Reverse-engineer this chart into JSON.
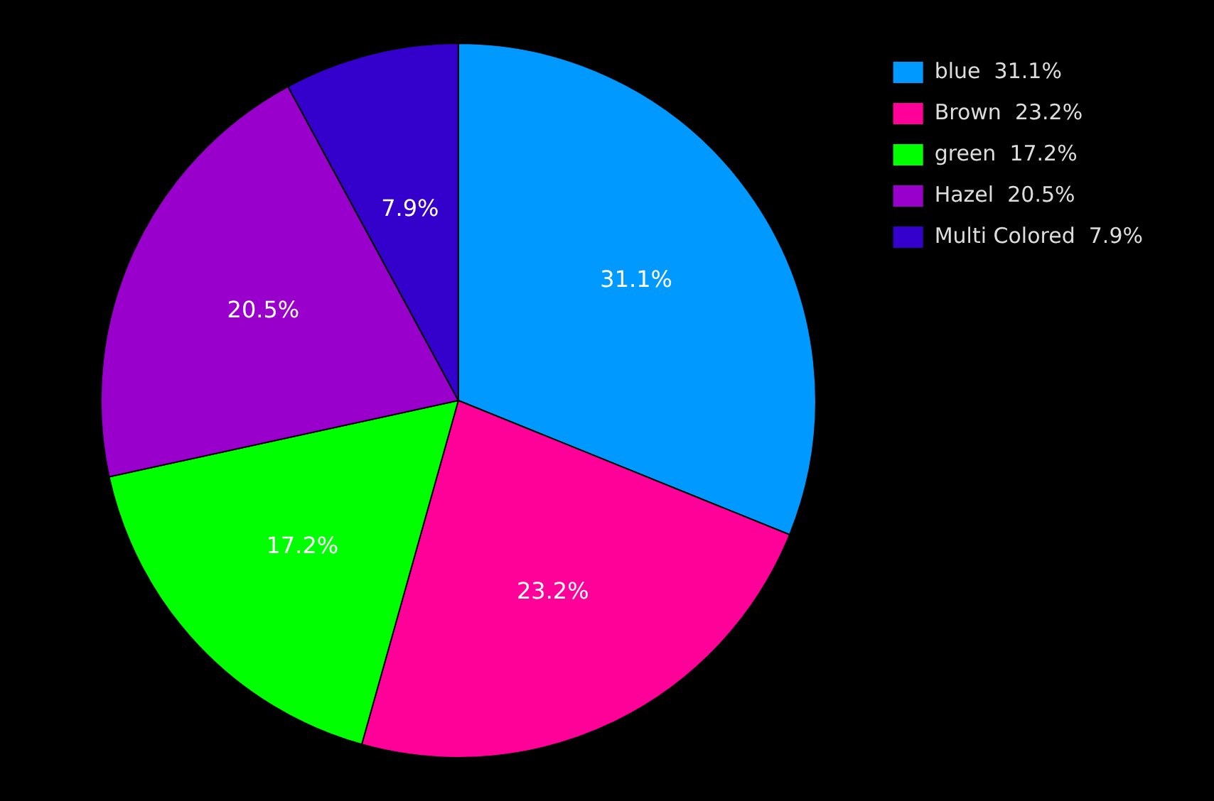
{
  "chart_data": {
    "type": "pie",
    "categories": [
      "blue",
      "Brown",
      "green",
      "Hazel",
      "Multi Colored"
    ],
    "values": [
      31.1,
      23.2,
      17.2,
      20.5,
      7.9
    ],
    "value_labels": [
      "31.1%",
      "23.2%",
      "17.2%",
      "20.5%",
      "7.9%"
    ],
    "colors": [
      "#0099ff",
      "#ff0099",
      "#00ff00",
      "#9900cc",
      "#3300cc"
    ],
    "legend": "top right"
  }
}
